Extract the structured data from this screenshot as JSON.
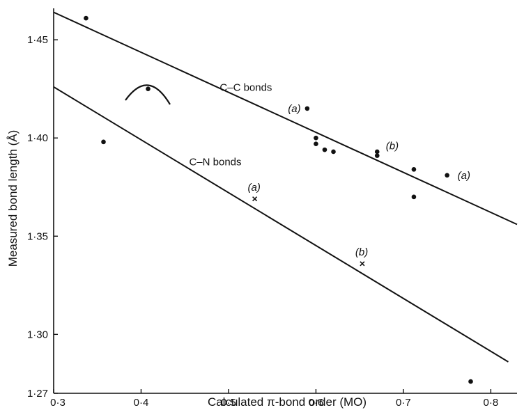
{
  "chart_data": {
    "type": "scatter",
    "xlabel": "Calculated  π-bond order (MO)",
    "ylabel": "Measured bond length (Å)",
    "xlim": [
      0.3,
      0.83
    ],
    "ylim": [
      1.27,
      1.466
    ],
    "x_ticks": [
      {
        "value": 0.3,
        "label": "0·3"
      },
      {
        "value": 0.4,
        "label": "0·4"
      },
      {
        "value": 0.5,
        "label": "0·5"
      },
      {
        "value": 0.6,
        "label": "0·6"
      },
      {
        "value": 0.7,
        "label": "0·7"
      },
      {
        "value": 0.8,
        "label": "0·8"
      }
    ],
    "y_ticks": [
      {
        "value": 1.27,
        "label": "1·27"
      },
      {
        "value": 1.3,
        "label": "1·30"
      },
      {
        "value": 1.35,
        "label": "1·35"
      },
      {
        "value": 1.4,
        "label": "1·40"
      },
      {
        "value": 1.45,
        "label": "1·45"
      }
    ],
    "grid": false,
    "lines": [
      {
        "label": "C–C bonds",
        "x": [
          0.3,
          0.83
        ],
        "y": [
          1.464,
          1.356
        ]
      },
      {
        "label": "C–N bonds",
        "x": [
          0.3,
          0.82
        ],
        "y": [
          1.426,
          1.286
        ]
      }
    ],
    "series": [
      {
        "marker": "dot",
        "x": [
          0.337,
          0.357,
          0.408,
          0.59,
          0.6,
          0.6,
          0.61,
          0.62,
          0.67,
          0.67,
          0.712,
          0.712,
          0.75,
          0.777
        ],
        "y": [
          1.461,
          1.398,
          1.425,
          1.415,
          1.4,
          1.397,
          1.394,
          1.393,
          1.393,
          1.391,
          1.384,
          1.37,
          1.381,
          1.276
        ]
      },
      {
        "marker": "cross",
        "x": [
          0.53,
          0.653
        ],
        "y": [
          1.369,
          1.336
        ]
      }
    ],
    "annotations": [
      {
        "text": "(a)",
        "x": 0.568,
        "y": 1.415
      },
      {
        "text": "(b)",
        "x": 0.68,
        "y": 1.396
      },
      {
        "text": "(a)",
        "x": 0.762,
        "y": 1.381
      },
      {
        "text": "(a)",
        "x": 0.522,
        "y": 1.375
      },
      {
        "text": "(b)",
        "x": 0.645,
        "y": 1.342
      }
    ]
  }
}
